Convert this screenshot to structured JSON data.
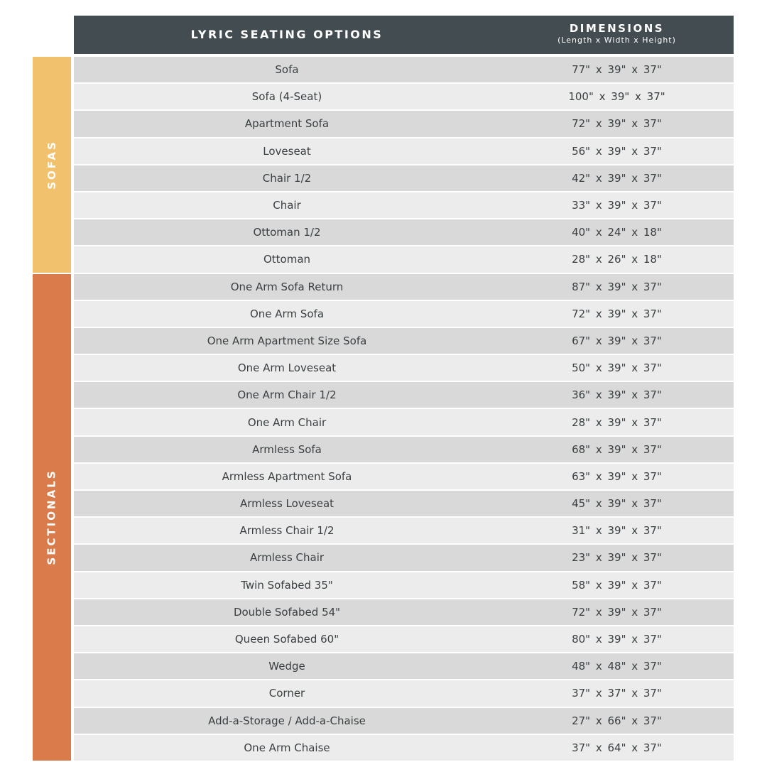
{
  "header": {
    "title": "LYRIC SEATING OPTIONS",
    "dimensions_title": "DIMENSIONS",
    "dimensions_subtitle": "(Length x Width x Height)"
  },
  "colors": {
    "header": "#434c51",
    "sofas": "#f2c16e",
    "sectionals": "#d97b4b",
    "row_dark": "#d9d9d9",
    "row_light": "#ececec"
  },
  "groups": [
    {
      "label": "SOFAS",
      "rows": 8
    },
    {
      "label": "SECTIONALS",
      "rows": 18
    }
  ],
  "rows": [
    {
      "name": "Sofa",
      "dims": "77\" x 39\" x 37\""
    },
    {
      "name": "Sofa (4-Seat)",
      "dims": "100\" x 39\" x 37\""
    },
    {
      "name": "Apartment Sofa",
      "dims": "72\" x 39\" x 37\""
    },
    {
      "name": "Loveseat",
      "dims": "56\" x 39\" x 37\""
    },
    {
      "name": "Chair 1/2",
      "dims": "42\" x 39\" x 37\""
    },
    {
      "name": "Chair",
      "dims": "33\" x 39\" x 37\""
    },
    {
      "name": "Ottoman 1/2",
      "dims": "40\" x 24\" x 18\""
    },
    {
      "name": "Ottoman",
      "dims": "28\" x 26\" x 18\""
    },
    {
      "name": "One Arm Sofa Return",
      "dims": "87\" x 39\" x 37\""
    },
    {
      "name": "One Arm Sofa",
      "dims": "72\" x 39\" x 37\""
    },
    {
      "name": "One Arm Apartment Size Sofa",
      "dims": "67\" x 39\" x 37\""
    },
    {
      "name": "One Arm Loveseat",
      "dims": "50\" x 39\" x 37\""
    },
    {
      "name": "One Arm Chair 1/2",
      "dims": "36\" x 39\" x 37\""
    },
    {
      "name": "One Arm Chair",
      "dims": "28\" x 39\" x 37\""
    },
    {
      "name": "Armless Sofa",
      "dims": "68\" x 39\" x 37\""
    },
    {
      "name": "Armless Apartment Sofa",
      "dims": "63\" x 39\" x 37\""
    },
    {
      "name": "Armless Loveseat",
      "dims": "45\" x 39\" x 37\""
    },
    {
      "name": "Armless Chair 1/2",
      "dims": "31\" x 39\" x 37\""
    },
    {
      "name": "Armless Chair",
      "dims": "23\" x 39\" x 37\""
    },
    {
      "name": "Twin Sofabed 35\"",
      "dims": "58\" x 39\" x 37\""
    },
    {
      "name": "Double Sofabed 54\"",
      "dims": "72\" x 39\" x 37\""
    },
    {
      "name": "Queen Sofabed 60\"",
      "dims": "80\" x 39\" x 37\""
    },
    {
      "name": "Wedge",
      "dims": "48\" x 48\" x 37\""
    },
    {
      "name": "Corner",
      "dims": "37\" x 37\" x 37\""
    },
    {
      "name": "Add-a-Storage / Add-a-Chaise",
      "dims": "27\" x 66\" x 37\""
    },
    {
      "name": "One Arm Chaise",
      "dims": "37\" x 64\" x 37\""
    }
  ]
}
